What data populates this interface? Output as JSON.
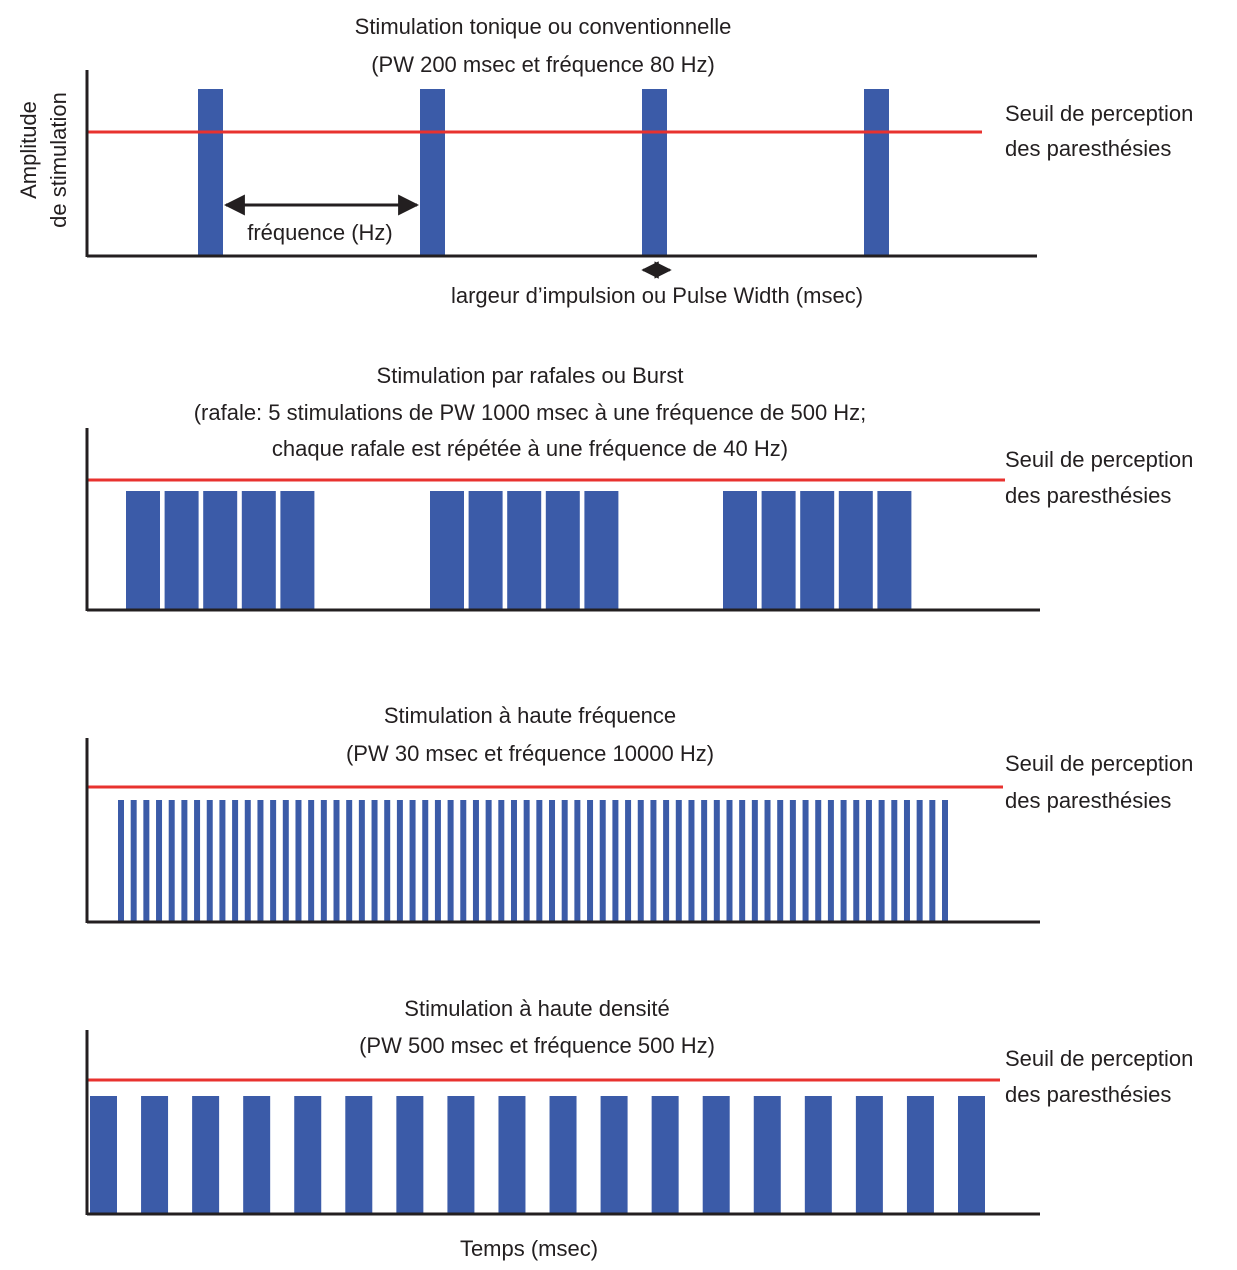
{
  "colors": {
    "pulse": "#3b5ba8",
    "threshold": "#e8322f",
    "axis": "#231f20",
    "text": "#231f20"
  },
  "y_axis_label": [
    "Amplitude",
    "de stimulation"
  ],
  "x_axis_label": "Temps (msec)",
  "threshold_label": [
    "Seuil de perception",
    "des paresthésies"
  ],
  "annotations": {
    "frequency": "fréquence (Hz)",
    "pulse_width": "largeur d’impulsion ou Pulse Width (msec)"
  },
  "panels": [
    {
      "id": "tonic",
      "title": "Stimulation tonique ou conventionnelle",
      "subtitle": [
        "(PW 200 msec et fréquence 80 Hz)"
      ],
      "pattern": "tonic",
      "pulse_count": 4,
      "amplitude_vs_threshold": "above"
    },
    {
      "id": "burst",
      "title": "Stimulation par rafales ou Burst",
      "subtitle": [
        "(rafale: 5 stimulations de PW 1000 msec à une fréquence de 500 Hz;",
        "chaque rafale est répétée à une fréquence de 40 Hz)"
      ],
      "pattern": "burst",
      "burst_count": 3,
      "pulses_per_burst": 5,
      "amplitude_vs_threshold": "below"
    },
    {
      "id": "high-frequency",
      "title": "Stimulation à haute fréquence",
      "subtitle": [
        "(PW 30 msec et fréquence 10000 Hz)"
      ],
      "pattern": "dense",
      "pulse_count": 66,
      "amplitude_vs_threshold": "below"
    },
    {
      "id": "high-density",
      "title": "Stimulation à haute densité",
      "subtitle": [
        "(PW 500 msec et fréquence 500 Hz)"
      ],
      "pattern": "regular",
      "pulse_count": 18,
      "amplitude_vs_threshold": "below"
    }
  ]
}
